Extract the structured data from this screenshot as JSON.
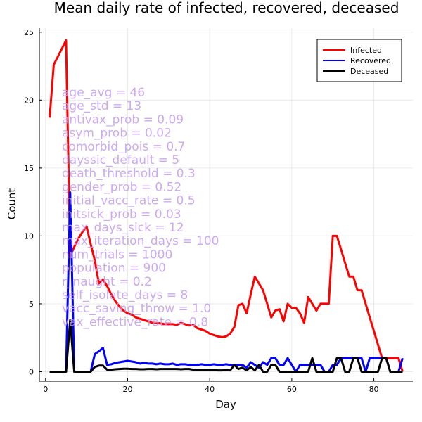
{
  "chart_data": {
    "type": "line",
    "title": "Mean daily rate of infected, recovered, deceased",
    "xlabel": "Day",
    "ylabel": "Count",
    "xlim": [
      -1.5,
      89.5
    ],
    "ylim": [
      -0.7,
      25.3
    ],
    "xticks": [
      0,
      20,
      40,
      60,
      80
    ],
    "yticks": [
      0,
      5,
      10,
      15,
      20,
      25
    ],
    "grid": true,
    "legend_position": "top-right",
    "series": [
      {
        "name": "Infected",
        "color": "#ff0000",
        "x": [
          1,
          2,
          3,
          4,
          5,
          6,
          7,
          8,
          9,
          10,
          11,
          12,
          13,
          14,
          15,
          16,
          17,
          18,
          19,
          20,
          21,
          22,
          23,
          24,
          25,
          26,
          27,
          28,
          29,
          30,
          31,
          32,
          33,
          34,
          35,
          36,
          37,
          38,
          39,
          40,
          41,
          42,
          43,
          44,
          45,
          46,
          47,
          48,
          49,
          50,
          51,
          52,
          53,
          54,
          55,
          56,
          57,
          58,
          59,
          60,
          61,
          62,
          63,
          64,
          65,
          66,
          67,
          68,
          69,
          70,
          71,
          72,
          73,
          74,
          75,
          76,
          77,
          78,
          79,
          80,
          81,
          82,
          83,
          84,
          85,
          86,
          87
        ],
        "values": [
          18.7,
          22.6,
          23.2,
          23.8,
          24.4,
          8.5,
          9.2,
          9.8,
          10.3,
          10.7,
          9.4,
          8.2,
          6.5,
          6.8,
          6.3,
          5.7,
          5.2,
          4.8,
          4.5,
          4.3,
          4.2,
          4.0,
          3.9,
          3.8,
          3.7,
          3.6,
          3.6,
          3.55,
          3.5,
          3.5,
          3.5,
          3.45,
          3.6,
          3.5,
          3.4,
          3.45,
          3.2,
          3.1,
          3.0,
          2.8,
          2.7,
          2.6,
          2.55,
          2.6,
          2.8,
          3.3,
          4.9,
          5.0,
          4.3,
          5.7,
          7.0,
          6.5,
          6.0,
          5.0,
          4.0,
          4.5,
          4.6,
          3.7,
          5.0,
          4.7,
          4.7,
          4.3,
          3.6,
          5.5,
          5.0,
          4.5,
          5.0,
          5.0,
          5.0,
          10.0,
          10.0,
          9.0,
          8.0,
          7.0,
          7.0,
          6.0,
          6.0,
          5.0,
          4.0,
          3.0,
          2.0,
          1.0,
          1.0,
          1.0,
          1.0,
          1.0,
          0.0
        ]
      },
      {
        "name": "Recovered",
        "color": "#0000ff",
        "x": [
          1,
          2,
          3,
          4,
          5,
          6,
          7,
          8,
          9,
          10,
          11,
          12,
          13,
          14,
          15,
          16,
          17,
          18,
          19,
          20,
          21,
          22,
          23,
          24,
          25,
          26,
          27,
          28,
          29,
          30,
          31,
          32,
          33,
          34,
          35,
          36,
          37,
          38,
          39,
          40,
          41,
          42,
          43,
          44,
          45,
          46,
          47,
          48,
          49,
          50,
          51,
          52,
          53,
          54,
          55,
          56,
          57,
          58,
          59,
          60,
          61,
          62,
          63,
          64,
          65,
          66,
          67,
          68,
          69,
          70,
          71,
          72,
          73,
          74,
          75,
          76,
          77,
          78,
          79,
          80,
          81,
          82,
          83,
          84,
          85,
          86,
          87
        ],
        "values": [
          0,
          0,
          0,
          0,
          0,
          13.2,
          0,
          0,
          0,
          0,
          0,
          1.3,
          1.5,
          1.75,
          0.5,
          0.55,
          0.65,
          0.7,
          0.75,
          0.8,
          0.75,
          0.7,
          0.6,
          0.65,
          0.6,
          0.6,
          0.55,
          0.6,
          0.55,
          0.55,
          0.6,
          0.5,
          0.55,
          0.55,
          0.5,
          0.5,
          0.5,
          0.55,
          0.5,
          0.5,
          0.55,
          0.5,
          0.5,
          0.55,
          0.5,
          0.5,
          0.5,
          0.5,
          0.3,
          0.7,
          0.5,
          0.3,
          0.7,
          0.5,
          1.0,
          1.0,
          0.5,
          0.5,
          1.0,
          0.5,
          0,
          0.5,
          0.5,
          0.5,
          0.5,
          0.5,
          0.5,
          0,
          0,
          0.5,
          0.5,
          1.0,
          1.0,
          1.0,
          1.0,
          1.0,
          1.0,
          0,
          1.0,
          1.0,
          1.0,
          1.0,
          1.0,
          0,
          0,
          0,
          1.0
        ]
      },
      {
        "name": "Deceased",
        "color": "#000000",
        "x": [
          1,
          2,
          3,
          4,
          5,
          6,
          7,
          8,
          9,
          10,
          11,
          12,
          13,
          14,
          15,
          16,
          17,
          18,
          19,
          20,
          21,
          22,
          23,
          24,
          25,
          26,
          27,
          28,
          29,
          30,
          31,
          32,
          33,
          34,
          35,
          36,
          37,
          38,
          39,
          40,
          41,
          42,
          43,
          44,
          45,
          46,
          47,
          48,
          49,
          50,
          51,
          52,
          53,
          54,
          55,
          56,
          57,
          58,
          59,
          60,
          61,
          62,
          63,
          64,
          65,
          66,
          67,
          68,
          69,
          70,
          71,
          72,
          73,
          74,
          75,
          76,
          77,
          78,
          79,
          80,
          81,
          82,
          83,
          84,
          85,
          86,
          87
        ],
        "values": [
          0,
          0,
          0,
          0,
          0,
          3.8,
          0,
          0,
          0,
          0,
          0,
          0.35,
          0.45,
          0.45,
          0.15,
          0.15,
          0.18,
          0.2,
          0.22,
          0.22,
          0.2,
          0.2,
          0.18,
          0.18,
          0.2,
          0.2,
          0.18,
          0.2,
          0.2,
          0.2,
          0.2,
          0.2,
          0.18,
          0.2,
          0.2,
          0.15,
          0.15,
          0.15,
          0.15,
          0.15,
          0.15,
          0.1,
          0.1,
          0.15,
          0.1,
          0.5,
          0.2,
          0.3,
          0.1,
          0.35,
          0.1,
          0.5,
          0,
          0,
          0.5,
          0.5,
          0,
          0,
          0,
          0,
          0,
          0,
          0,
          0,
          1.0,
          0,
          0,
          0,
          0,
          0,
          1.0,
          1.0,
          0,
          0,
          1.0,
          1.0,
          0,
          0,
          0,
          0,
          0,
          1.0,
          1.0,
          0,
          0,
          0,
          0
        ]
      }
    ],
    "annotations": [
      "age_avg = 46",
      "age_std = 13",
      "antivax_prob = 0.09",
      "asym_prob = 0.02",
      "comorbid_pois = 0.7",
      "dayssic_default = 5",
      "death_threshold = 0.3",
      "gender_prob = 0.52",
      "initial_vacc_rate = 0.5",
      "initsick_prob = 0.03",
      "max_days_sick = 12",
      "max_iteration_days = 100",
      "num_trials = 1000",
      "population = 900",
      "r_naught = 0.2",
      "self_isolate_days = 8",
      "vacc_saving_throw = 1.0",
      "vax_effective_rate = 0.8"
    ]
  }
}
